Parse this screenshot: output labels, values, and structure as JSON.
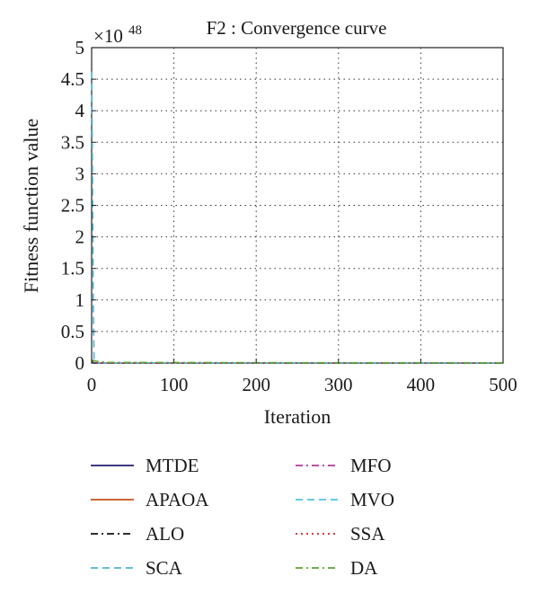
{
  "chart_data": {
    "type": "line",
    "title": "F2 : Convergence curve",
    "xlabel": "Iteration",
    "ylabel": "Fitness function value",
    "y_multiplier": "×10",
    "y_exponent": "48",
    "xlim": [
      0,
      500
    ],
    "ylim": [
      0,
      5
    ],
    "x_ticks": [
      "0",
      "100",
      "200",
      "300",
      "400",
      "500"
    ],
    "y_ticks": [
      "0",
      "0.5",
      "1",
      "1.5",
      "2",
      "2.5",
      "3",
      "3.5",
      "4",
      "4.5",
      "5"
    ],
    "grid": true,
    "legend_position": "bottom",
    "series": [
      {
        "name": "MTDE",
        "color": "#1f1f6e",
        "dash": "solid",
        "x": [
          0,
          1,
          2,
          500
        ],
        "y": [
          0.02,
          0.01,
          0.0,
          0.0
        ]
      },
      {
        "name": "APAOA",
        "color": "#c0501a",
        "dash": "solid",
        "x": [
          0,
          1,
          2,
          500
        ],
        "y": [
          0.03,
          0.01,
          0.0,
          0.0
        ]
      },
      {
        "name": "ALO",
        "color": "#111111",
        "dash": "dashdot",
        "x": [
          0,
          1,
          3,
          500
        ],
        "y": [
          0.04,
          0.02,
          0.0,
          0.0
        ]
      },
      {
        "name": "SCA",
        "color": "#4db3d6",
        "dash": "dashed",
        "x": [
          0,
          1,
          2,
          3,
          500
        ],
        "y": [
          4.62,
          3.2,
          0.9,
          0.0,
          0.0
        ]
      },
      {
        "name": "MFO",
        "color": "#b0379c",
        "dash": "dashdot",
        "x": [
          0,
          1,
          2,
          500
        ],
        "y": [
          0.05,
          0.02,
          0.0,
          0.0
        ]
      },
      {
        "name": "MVO",
        "color": "#4fc3e0",
        "dash": "dashed",
        "x": [
          0,
          1,
          2,
          500
        ],
        "y": [
          0.04,
          0.02,
          0.0,
          0.0
        ]
      },
      {
        "name": "SSA",
        "color": "#c2262d",
        "dash": "dotted",
        "x": [
          0,
          1,
          2,
          500
        ],
        "y": [
          0.03,
          0.02,
          0.0,
          0.0
        ]
      },
      {
        "name": "DA",
        "color": "#5aa52f",
        "dash": "dashdot",
        "x": [
          0,
          2,
          5,
          20,
          500
        ],
        "y": [
          0.05,
          0.04,
          0.03,
          0.01,
          0.0
        ]
      }
    ]
  }
}
